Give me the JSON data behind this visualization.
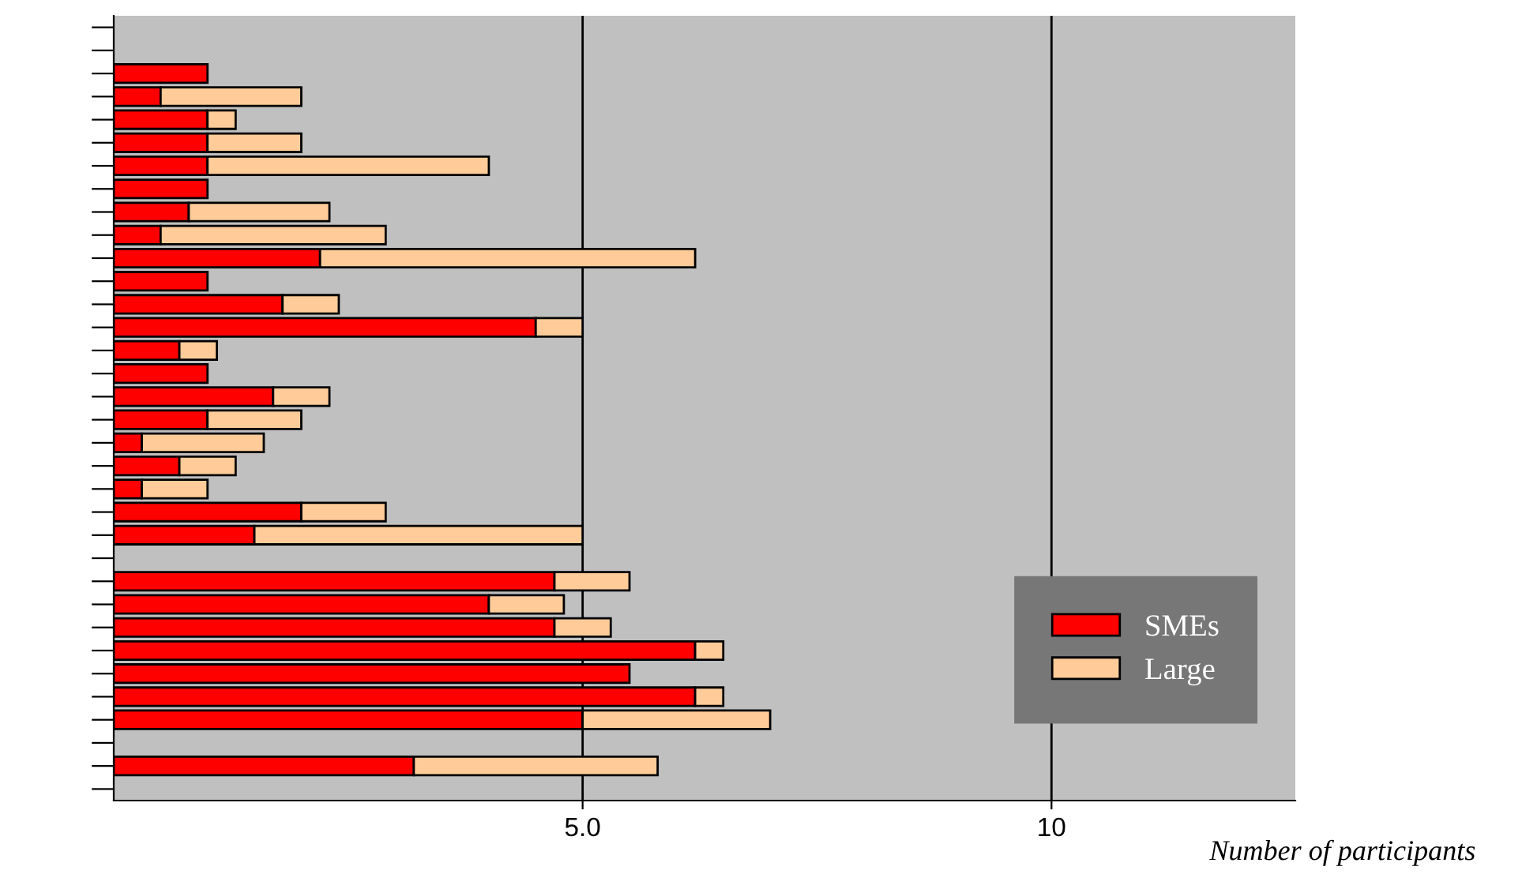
{
  "chart_data": {
    "type": "bar",
    "orientation": "horizontal",
    "stacked": true,
    "xlabel": "Number of participants",
    "categories": [
      null,
      null,
      null,
      null,
      null,
      null,
      null,
      null,
      null,
      null,
      null,
      null,
      null,
      null,
      null,
      null,
      null,
      null,
      null,
      null,
      null,
      null,
      null,
      null,
      null,
      null,
      null,
      null,
      null,
      null,
      null,
      null,
      null,
      null
    ],
    "series": [
      {
        "name": "SMEs",
        "color": "#ff0000",
        "values": [
          null,
          null,
          1.0,
          0.5,
          1.0,
          1.0,
          1.0,
          1.0,
          0.8,
          0.5,
          2.2,
          1.0,
          1.8,
          4.5,
          0.7,
          1.0,
          1.7,
          1.0,
          0.3,
          0.7,
          0.3,
          2.0,
          1.5,
          null,
          4.7,
          4.0,
          4.7,
          6.2,
          5.5,
          6.2,
          5.0,
          null,
          3.2,
          null
        ]
      },
      {
        "name": "Large",
        "color": "#ffcc99",
        "values": [
          null,
          null,
          null,
          1.5,
          0.3,
          1.0,
          3.0,
          null,
          1.5,
          2.4,
          4.0,
          null,
          0.6,
          0.5,
          0.4,
          null,
          0.6,
          1.0,
          1.3,
          0.6,
          0.7,
          0.9,
          3.5,
          null,
          0.8,
          0.8,
          0.6,
          0.3,
          null,
          0.3,
          2.0,
          null,
          2.6,
          null
        ]
      }
    ],
    "xlim": [
      0,
      12.6
    ],
    "xticks": [
      {
        "value": 5,
        "label": "5.0"
      },
      10
    ],
    "grid": "x",
    "legend": "bottom right",
    "tick_labels": "x"
  }
}
